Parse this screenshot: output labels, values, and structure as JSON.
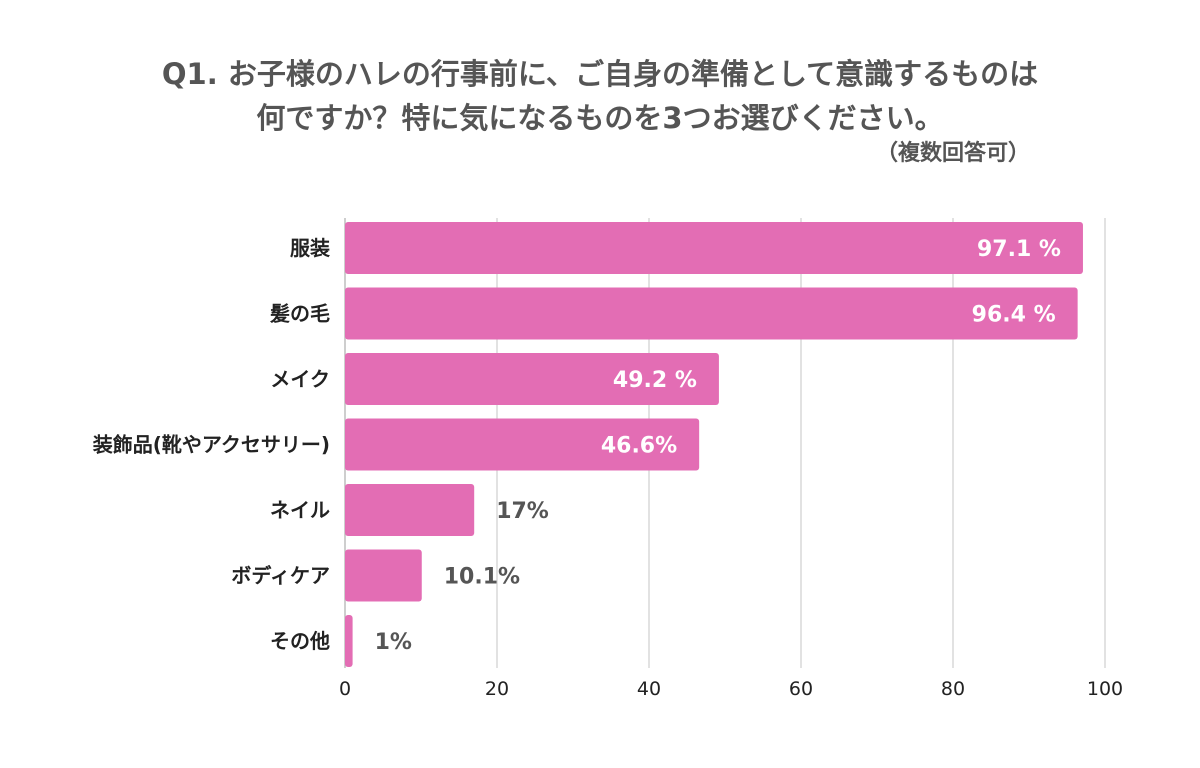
{
  "chart_data": {
    "type": "bar",
    "orientation": "horizontal",
    "title_line1": "Q1. お子様のハレの行事前に、ご自身の準備として意識するものは",
    "title_line2": "何ですか？特に気になるものを3つお選びください。",
    "subtitle": "（複数回答可）",
    "categories": [
      "服装",
      "髪の毛",
      "メイク",
      "装飾品(靴やアクセサリー)",
      "ネイル",
      "ボディケア",
      "その他"
    ],
    "values": [
      97.1,
      96.4,
      49.2,
      46.6,
      17,
      10.1,
      1
    ],
    "value_labels": [
      "97.1 %",
      "96.4 %",
      "49.2 %",
      "46.6%",
      "17%",
      "10.1%",
      "1%"
    ],
    "label_inside": [
      true,
      true,
      true,
      true,
      false,
      false,
      false
    ],
    "xlim": [
      0,
      100
    ],
    "xticks": [
      0,
      20,
      40,
      60,
      80,
      100
    ],
    "xlabel": "",
    "ylabel": "",
    "grid": true,
    "bar_color": "#e36db4",
    "grid_color": "#d9d9d9"
  }
}
